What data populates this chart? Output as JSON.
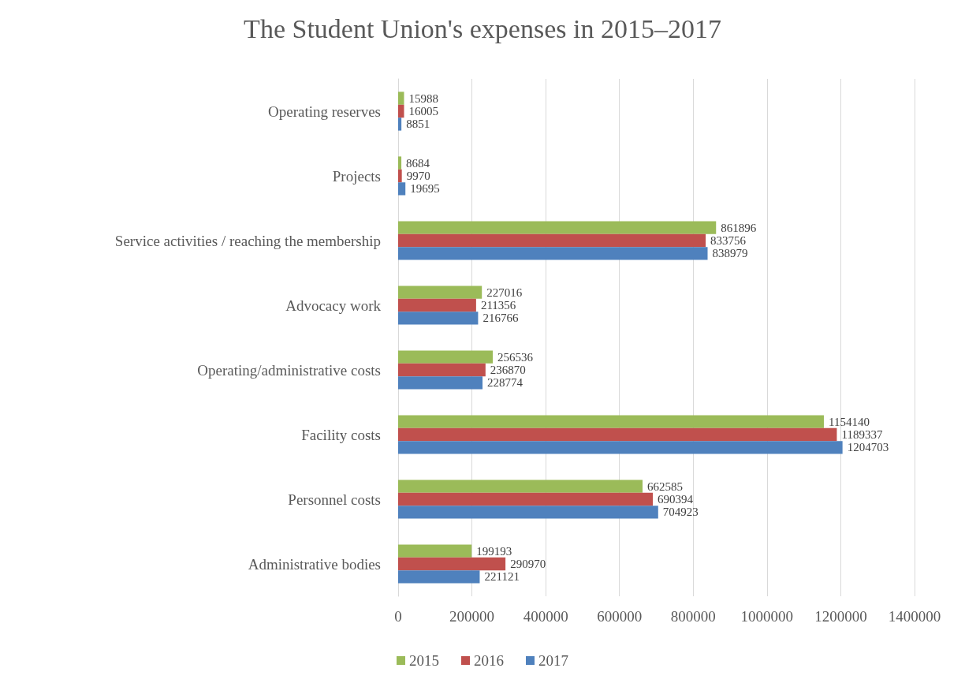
{
  "chart_data": {
    "type": "bar",
    "orientation": "horizontal",
    "title": "The Student Union's expenses in 2015–2017",
    "categories": [
      "Operating reserves",
      "Projects",
      "Service activities / reaching the membership",
      "Advocacy work",
      "Operating/administrative costs",
      "Facility costs",
      "Personnel costs",
      "Administrative bodies"
    ],
    "series": [
      {
        "name": "2015",
        "color": "#9bbb59",
        "values": [
          15988,
          8684,
          861896,
          227016,
          256536,
          1154140,
          662585,
          199193
        ]
      },
      {
        "name": "2016",
        "color": "#c0504d",
        "values": [
          16005,
          9970,
          833756,
          211356,
          236870,
          1189337,
          690394,
          290970
        ]
      },
      {
        "name": "2017",
        "color": "#4f81bd",
        "values": [
          8851,
          19695,
          838979,
          216766,
          228774,
          1204703,
          704923,
          221121
        ]
      }
    ],
    "xlim": [
      0,
      1400000
    ],
    "xticks": [
      0,
      200000,
      400000,
      600000,
      800000,
      1000000,
      1200000,
      1400000
    ],
    "grid": "x",
    "legend": "bottom",
    "data_labels": true
  }
}
